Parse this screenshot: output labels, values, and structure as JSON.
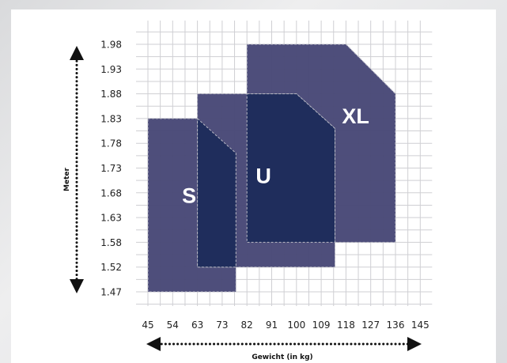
{
  "chart_data": {
    "type": "area",
    "xlabel": "Gewicht (in kg)",
    "ylabel": "Meter",
    "x_ticks": [
      "45",
      "54",
      "63",
      "73",
      "82",
      "91",
      "100",
      "109",
      "118",
      "127",
      "136",
      "145"
    ],
    "y_ticks": [
      "1.98",
      "1.93",
      "1.88",
      "1.83",
      "1.78",
      "1.73",
      "1.68",
      "1.63",
      "1.58",
      "1.52",
      "1.47"
    ],
    "grid": true,
    "series": [
      {
        "name": "XL",
        "color": "#4a4a78",
        "points": [
          [
            82,
            1.98
          ],
          [
            118,
            1.98
          ],
          [
            136,
            1.88
          ],
          [
            136,
            1.58
          ],
          [
            82,
            1.58
          ]
        ]
      },
      {
        "name": "S",
        "color": "#4a4a78",
        "points": [
          [
            45,
            1.83
          ],
          [
            63,
            1.83
          ],
          [
            78,
            1.76
          ],
          [
            78,
            1.47
          ],
          [
            45,
            1.47
          ]
        ]
      },
      {
        "name": "U",
        "color": "#4a4a78",
        "points": [
          [
            63,
            1.88
          ],
          [
            100,
            1.88
          ],
          [
            114,
            1.81
          ],
          [
            114,
            1.52
          ],
          [
            63,
            1.52
          ]
        ]
      },
      {
        "name": "S-U overlap",
        "color": "#1f2d5c",
        "points": [
          [
            63,
            1.83
          ],
          [
            78,
            1.76
          ],
          [
            78,
            1.52
          ],
          [
            63,
            1.52
          ]
        ]
      },
      {
        "name": "U-XL overlap",
        "color": "#1f2d5c",
        "points": [
          [
            82,
            1.88
          ],
          [
            100,
            1.88
          ],
          [
            114,
            1.81
          ],
          [
            114,
            1.58
          ],
          [
            82,
            1.58
          ]
        ]
      }
    ],
    "size_labels": [
      {
        "text": "S",
        "x": 60,
        "y": 1.66
      },
      {
        "text": "U",
        "x": 88,
        "y": 1.7
      },
      {
        "text": "XL",
        "x": 121.5,
        "y": 1.82
      }
    ]
  }
}
